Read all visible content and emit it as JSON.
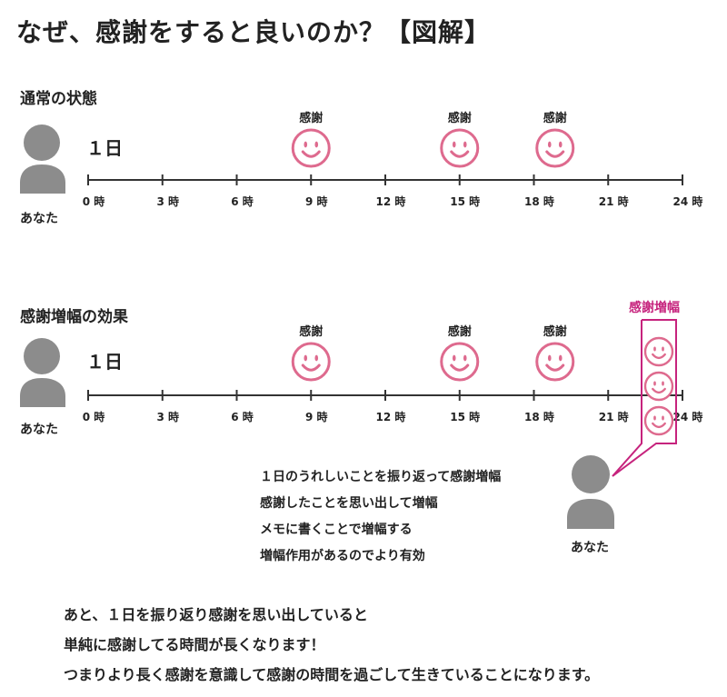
{
  "title": "なぜ、感謝をすると良いのか？【図解】",
  "sections": {
    "normal": {
      "heading": "通常の状態"
    },
    "amplified": {
      "heading": "感謝増幅の効果"
    }
  },
  "day_label": "１日",
  "you_label": "あなた",
  "gratitude_label": "感謝",
  "timeline_ticks": [
    "0 時",
    "3 時",
    "6 時",
    "9 時",
    "12 時",
    "15 時",
    "18 時",
    "21 時",
    "24 時"
  ],
  "gratitude_hours": [
    9,
    15,
    19
  ],
  "amplification": {
    "title": "感謝増幅",
    "smiley_count": 3,
    "explanation": [
      "１日のうれしいことを振り返って感謝増幅",
      "感謝したことを思い出して増幅",
      "メモに書くことで増幅する",
      "増幅作用があるのでより有効"
    ]
  },
  "summary": [
    "あと、１日を振り返り感謝を思い出していると",
    "単純に感謝してる時間が長くなります！",
    "つまりより長く感謝を意識して感謝の時間を過ごして生きていることになります。"
  ],
  "colors": {
    "smiley": "#de6a8e",
    "amplify_accent": "#c6237d",
    "person": "#8c8c8c",
    "line": "#333333"
  }
}
